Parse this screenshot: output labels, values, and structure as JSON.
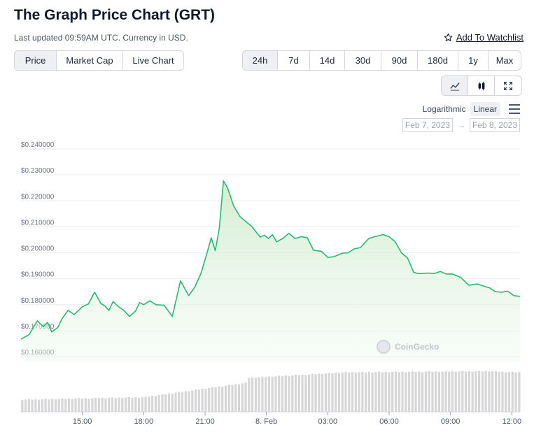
{
  "header": {
    "title": "The Graph Price Chart (GRT)",
    "updated": "Last updated 09:59AM UTC. Currency in USD.",
    "watchlist_label": "Add To Watchlist"
  },
  "tabs": [
    {
      "label": "Price",
      "active": true
    },
    {
      "label": "Market Cap",
      "active": false
    },
    {
      "label": "Live Chart",
      "active": false
    }
  ],
  "ranges": [
    {
      "label": "24h",
      "active": true
    },
    {
      "label": "7d",
      "active": false
    },
    {
      "label": "14d",
      "active": false
    },
    {
      "label": "30d",
      "active": false
    },
    {
      "label": "90d",
      "active": false
    },
    {
      "label": "180d",
      "active": false
    },
    {
      "label": "1y",
      "active": false
    },
    {
      "label": "Max",
      "active": false
    }
  ],
  "chart_icons": [
    "line-chart-icon",
    "candlestick-icon",
    "fullscreen-icon"
  ],
  "scale": {
    "logarithmic": "Logarithmic",
    "linear": "Linear",
    "active": "Linear"
  },
  "date_range": {
    "from": "Feb 7, 2023",
    "arrow": "→",
    "to": "Feb 8, 2023"
  },
  "watermark": "CoinGecko",
  "colors": {
    "line": "#2bb873",
    "fill_top": "#cdeccc",
    "volume": "#cfcfcf"
  },
  "chart_data": {
    "type": "area",
    "x_ticks": [
      "15:00",
      "18:00",
      "21:00",
      "8. Feb",
      "03:00",
      "06:00",
      "09:00",
      "12:00"
    ],
    "x_tick_hours": [
      3,
      6,
      9,
      12,
      15,
      18,
      21,
      24
    ],
    "y_ticks": [
      "$0.160000",
      "$0.170000",
      "$0.180000",
      "$0.190000",
      "$0.200000",
      "$0.210000",
      "$0.220000",
      "$0.230000",
      "$0.240000"
    ],
    "ylim": [
      0.16,
      0.24
    ],
    "xlim_hours": [
      0,
      24.4
    ],
    "grid": true,
    "x_hours": [
      0,
      0.4,
      0.8,
      1.1,
      1.3,
      1.5,
      1.8,
      2,
      2.3,
      2.6,
      3,
      3.3,
      3.6,
      3.9,
      4.1,
      4.3,
      4.5,
      4.8,
      5,
      5.3,
      5.6,
      5.8,
      6,
      6.3,
      6.6,
      7,
      7.4,
      7.8,
      8.2,
      8.5,
      8.8,
      9.1,
      9.3,
      9.5,
      9.7,
      9.9,
      10.1,
      10.4,
      10.7,
      11,
      11.3,
      11.5,
      11.7,
      11.9,
      12.1,
      12.3,
      12.5,
      12.8,
      13.1,
      13.4,
      13.7,
      14,
      14.3,
      14.7,
      15,
      15.3,
      15.7,
      16,
      16.3,
      16.6,
      17,
      17.3,
      17.7,
      18,
      18.3,
      18.6,
      18.9,
      19.2,
      19.4,
      19.6,
      19.9,
      20.2,
      20.5,
      20.8,
      21.1,
      21.5,
      21.9,
      22.3,
      22.6,
      22.9,
      23.2,
      23.5,
      23.8,
      24.1,
      24.4
    ],
    "prices": [
      0.1667,
      0.1685,
      0.1738,
      0.1715,
      0.1732,
      0.1695,
      0.1712,
      0.1745,
      0.1778,
      0.1762,
      0.1792,
      0.1803,
      0.1848,
      0.1805,
      0.1795,
      0.1778,
      0.1812,
      0.179,
      0.178,
      0.1755,
      0.1775,
      0.1808,
      0.18,
      0.1815,
      0.18,
      0.1798,
      0.1755,
      0.1892,
      0.1835,
      0.1868,
      0.192,
      0.2,
      0.2058,
      0.2008,
      0.2095,
      0.2277,
      0.225,
      0.218,
      0.214,
      0.212,
      0.21,
      0.208,
      0.206,
      0.2068,
      0.2055,
      0.207,
      0.2042,
      0.2055,
      0.2075,
      0.2055,
      0.2062,
      0.2058,
      0.201,
      0.2005,
      0.1982,
      0.1985,
      0.1998,
      0.2,
      0.2015,
      0.202,
      0.2055,
      0.2062,
      0.207,
      0.2062,
      0.2042,
      0.2,
      0.198,
      0.1925,
      0.192,
      0.192,
      0.1922,
      0.192,
      0.1928,
      0.1918,
      0.1918,
      0.1905,
      0.1875,
      0.188,
      0.1872,
      0.1865,
      0.185,
      0.1848,
      0.1852,
      0.1835,
      0.1832
    ]
  }
}
